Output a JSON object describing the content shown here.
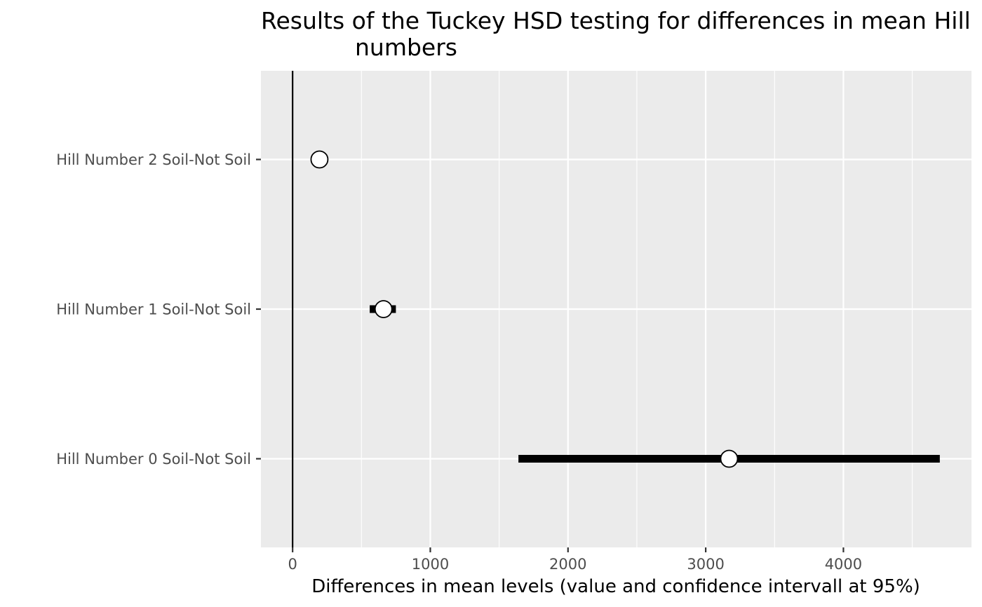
{
  "chart_data": {
    "type": "scatter",
    "title_lines": [
      "Results of the Tuckey HSD testing for differences in mean Hill",
      "numbers"
    ],
    "xlabel": "Differences in mean levels (value and confidence intervall at 95%)",
    "ylabel": "",
    "xlim": [
      -230,
      4930
    ],
    "x_ticks": [
      0,
      1000,
      2000,
      3000,
      4000
    ],
    "x_tick_labels": [
      "0",
      "1000",
      "2000",
      "3000",
      "4000"
    ],
    "reference_line_x": 0,
    "grid": true,
    "categories": [
      "Hill Number 2 Soil-Not Soil",
      "Hill Number 1 Soil-Not Soil",
      "Hill Number 0 Soil-Not Soil"
    ],
    "estimates": [
      195,
      660,
      3170
    ],
    "ci_lower": [
      180,
      560,
      1640
    ],
    "ci_upper": [
      210,
      750,
      4700
    ],
    "colors": {
      "panel": "#ebebeb",
      "grid": "#ffffff",
      "point_fill": "#ffffff",
      "point_stroke": "#000000",
      "errorbar": "#000000"
    }
  }
}
